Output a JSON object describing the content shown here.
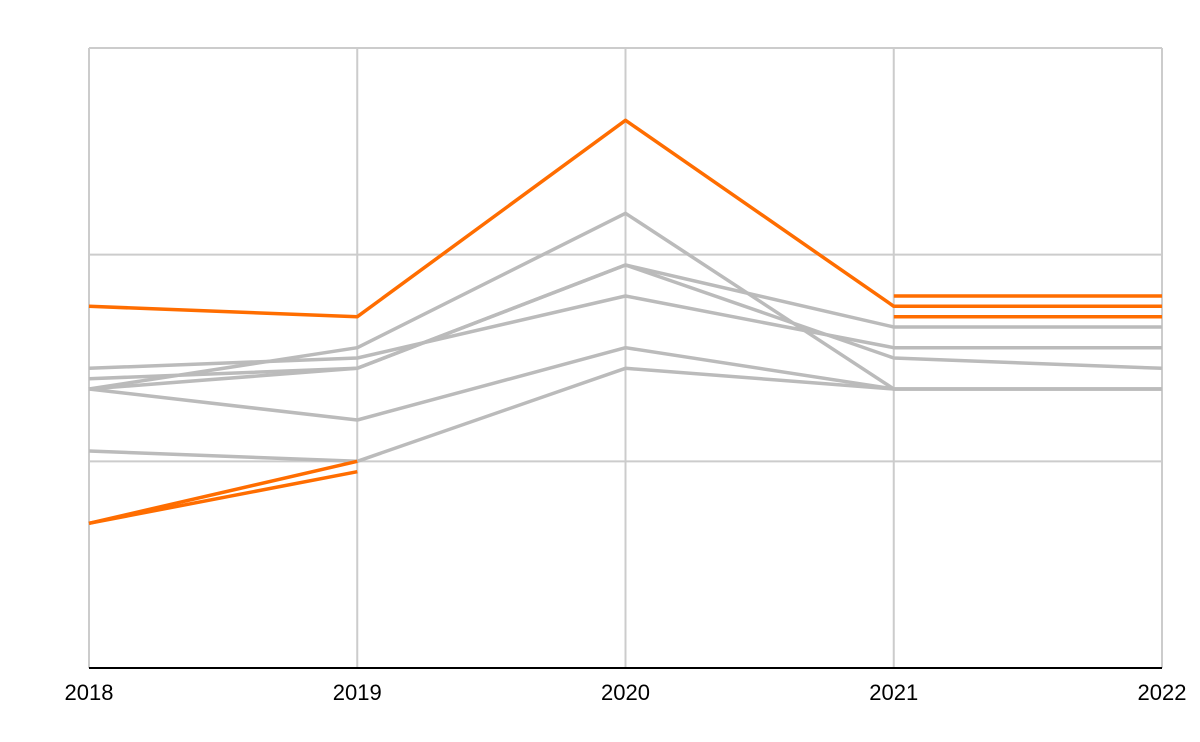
{
  "chart_data": {
    "type": "line",
    "title": "",
    "xlabel": "",
    "ylabel": "",
    "x": [
      "2018",
      "2019",
      "2020",
      "2021",
      "2022"
    ],
    "ylim": [
      0,
      3
    ],
    "y_gridlines": [
      1,
      2,
      3
    ],
    "x_gridlines": true,
    "legend": "none",
    "colors": {
      "highlight": "#ff6d00",
      "muted": "#bbbbbb",
      "grid": "#cccccc",
      "axis": "#000000"
    },
    "series": [
      {
        "values": [
          1.05,
          1.0,
          1.45,
          1.35,
          1.35
        ],
        "color": "#bbbbbb"
      },
      {
        "values": [
          1.35,
          1.2,
          1.55,
          1.35,
          1.35
        ],
        "color": "#bbbbbb"
      },
      {
        "values": [
          1.45,
          1.5,
          1.8,
          1.55,
          1.55
        ],
        "color": "#bbbbbb"
      },
      {
        "values": [
          1.4,
          1.45,
          1.95,
          1.5,
          1.45
        ],
        "color": "#bbbbbb"
      },
      {
        "values": [
          1.35,
          1.55,
          2.2,
          1.35,
          1.35
        ],
        "color": "#bbbbbb"
      },
      {
        "values": [
          1.35,
          1.45,
          1.95,
          1.65,
          1.65
        ],
        "color": "#bbbbbb"
      },
      {
        "values": [
          0.7,
          1.0,
          null,
          null,
          null
        ],
        "color": "#ff6d00"
      },
      {
        "values": [
          0.7,
          0.95,
          null,
          null,
          null
        ],
        "color": "#ff6d00"
      },
      {
        "values": [
          1.75,
          1.7,
          2.65,
          1.75,
          1.75
        ],
        "color": "#ff6d00"
      },
      {
        "values": [
          null,
          null,
          null,
          1.8,
          1.8
        ],
        "color": "#ff6d00"
      },
      {
        "values": [
          null,
          null,
          null,
          1.7,
          1.7
        ],
        "color": "#ff6d00"
      }
    ]
  }
}
